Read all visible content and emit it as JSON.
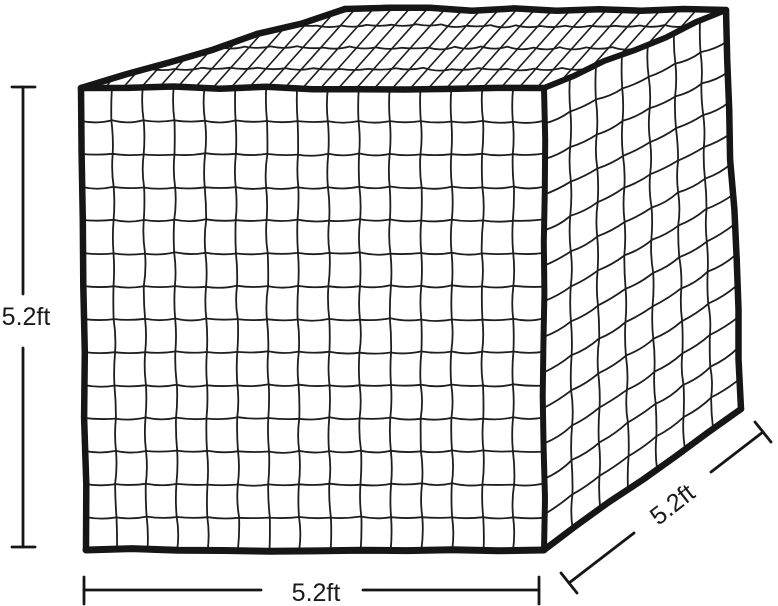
{
  "labels": {
    "height": "5.2ft",
    "width": "5.2ft",
    "depth": "5.2ft"
  },
  "style": {
    "background": "#ffffff",
    "ink": "#161616",
    "net_ink": "#1e1e1e"
  },
  "net": {
    "front_cols": 15,
    "front_rows": 14,
    "side_cols": 7,
    "side_rows": 13,
    "top_hatch_spacing": 18
  }
}
